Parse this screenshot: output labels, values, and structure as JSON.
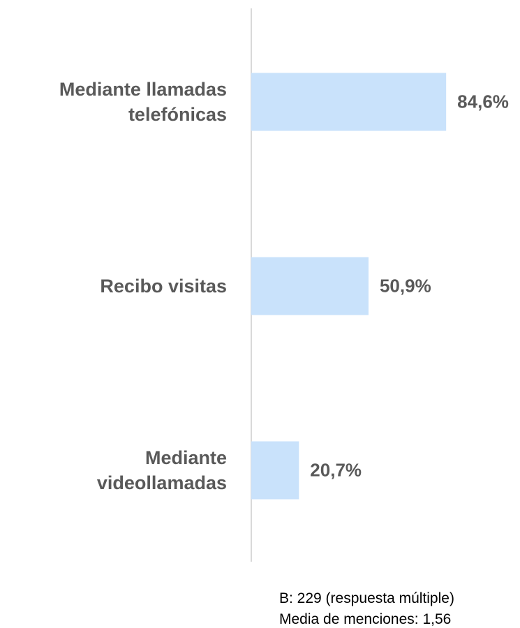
{
  "chart_data": {
    "type": "barh",
    "categories": [
      "Mediante llamadas telefónicas",
      "Recibo visitas",
      "Mediante videollamadas"
    ],
    "values": [
      84.6,
      50.9,
      20.7
    ],
    "value_labels": [
      "84,6%",
      "50,9%",
      "20,7%"
    ],
    "color": "#c9e2fb",
    "notes": [
      "B: 229 (respuesta múltiple)",
      "Media de menciones: 1,56"
    ]
  }
}
